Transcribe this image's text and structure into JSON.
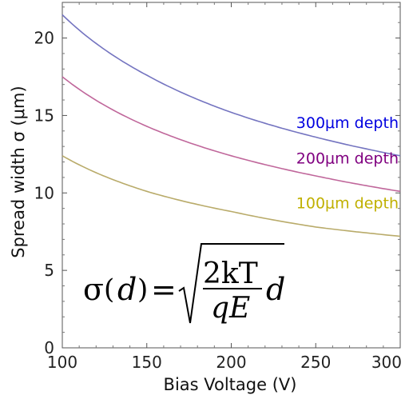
{
  "chart_data": {
    "type": "line",
    "title": "",
    "xlabel": "Bias Voltage (V)",
    "ylabel": "Spread width σ (μm)",
    "xlim": [
      100,
      300
    ],
    "ylim": [
      0,
      22.3
    ],
    "x_ticks": [
      100,
      150,
      200,
      250,
      300
    ],
    "y_ticks": [
      0,
      5,
      10,
      15,
      20
    ],
    "grid": false,
    "legend": "inline-right",
    "series": [
      {
        "name": "300μm depth",
        "color": "#7474c0",
        "label_color": "#0000e0",
        "x": [
          100,
          150,
          200,
          250,
          300
        ],
        "y": [
          21.5,
          17.6,
          15.2,
          13.6,
          12.4
        ]
      },
      {
        "name": "200μm depth",
        "color": "#c0679b",
        "label_color": "#800080",
        "x": [
          100,
          150,
          200,
          250,
          300
        ],
        "y": [
          17.5,
          14.3,
          12.4,
          11.1,
          10.1
        ]
      },
      {
        "name": "100μm depth",
        "color": "#b9ab6a",
        "label_color": "#c0b000",
        "x": [
          100,
          150,
          200,
          250,
          300
        ],
        "y": [
          12.4,
          10.1,
          8.8,
          7.8,
          7.2
        ]
      }
    ]
  },
  "formula": {
    "lhs_sigma": "σ",
    "lhs_open": "(",
    "lhs_var": "d",
    "lhs_close": ")",
    "equals": "=",
    "numerator": "2kT",
    "denominator": "qE",
    "trailing_var": "d"
  }
}
